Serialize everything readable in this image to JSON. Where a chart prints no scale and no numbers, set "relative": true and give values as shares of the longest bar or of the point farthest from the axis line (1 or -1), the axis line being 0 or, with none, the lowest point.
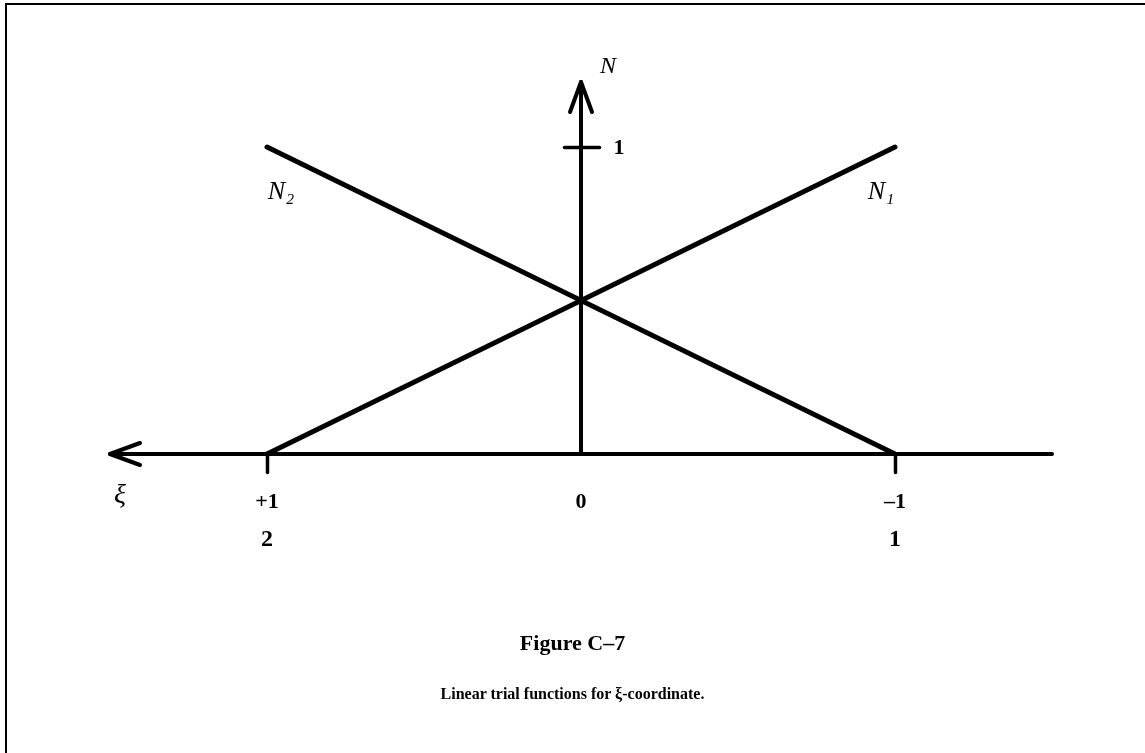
{
  "chart_data": {
    "type": "line",
    "title": "Figure C–7",
    "subtitle": "Linear trial functions for ξ-coordinate.",
    "xlabel": "ξ",
    "ylabel": "N",
    "x": [
      1,
      -1
    ],
    "series": [
      {
        "name": "N₁",
        "color": "#000000",
        "values": [
          0,
          1
        ]
      },
      {
        "name": "N₂",
        "color": "#000000",
        "values": [
          1,
          0
        ]
      }
    ],
    "relative": true,
    "xlim": [
      1.5,
      -1.5
    ],
    "xticks": [
      {
        "value": 1,
        "label": "+1"
      },
      0,
      {
        "value": -1,
        "label": "–1"
      }
    ],
    "annotations": [
      "1",
      "2",
      "1"
    ],
    "line_style": "solid"
  }
}
